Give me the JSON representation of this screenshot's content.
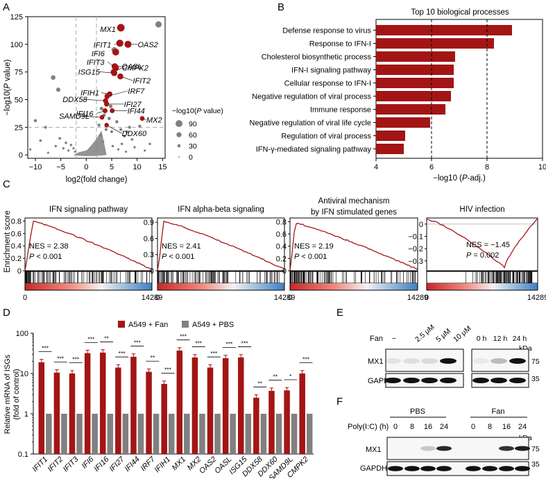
{
  "colors": {
    "red": "#a31515",
    "grey": "#808080",
    "darkred": "#8b0d0d",
    "lightgrey": "#bdbdbd"
  },
  "panel_labels": [
    "A",
    "B",
    "C",
    "D",
    "E",
    "F"
  ],
  "chart_data": [
    {
      "id": "volcano",
      "type": "scatter",
      "xlabel": "log2(fold change)",
      "ylabel_parts": [
        "−log10(",
        "P",
        " value)"
      ],
      "xticks": [
        -10,
        -5,
        0,
        5,
        10,
        15
      ],
      "yticks": [
        0,
        25,
        50,
        75,
        100,
        125
      ],
      "xlim": [
        -11.5,
        15.5
      ],
      "ylim": [
        -3,
        125
      ],
      "thresholds": {
        "x": [
          -2,
          2
        ],
        "y": 25
      },
      "legend": {
        "title_parts": [
          "−log10(",
          "P",
          " value)"
        ],
        "items": [
          "90",
          "60",
          "30",
          "0"
        ],
        "values": [
          90,
          60,
          30,
          0
        ]
      },
      "highlighted": [
        {
          "label": "MX1",
          "x": 6.8,
          "y": 115
        },
        {
          "label": "OAS2",
          "x": 8.2,
          "y": 100
        },
        {
          "label": "IFIT1",
          "x": 6.6,
          "y": 101
        },
        {
          "label": "IFI6",
          "x": 5.8,
          "y": 93
        },
        {
          "label": "OASL",
          "x": 5.6,
          "y": 80
        },
        {
          "label": "IFIT3",
          "x": 5.8,
          "y": 79
        },
        {
          "label": "CMPK2",
          "x": 5.4,
          "y": 75
        },
        {
          "label": "ISG15",
          "x": 5.5,
          "y": 74
        },
        {
          "label": "IFIT2",
          "x": 6.7,
          "y": 71
        },
        {
          "label": "IFIH1",
          "x": 4.6,
          "y": 55
        },
        {
          "label": "IRF7",
          "x": 4.1,
          "y": 53
        },
        {
          "label": "DDX58",
          "x": 3.8,
          "y": 49
        },
        {
          "label": "IFI27",
          "x": 4.0,
          "y": 46
        },
        {
          "label": "IFI16",
          "x": 3.7,
          "y": 40
        },
        {
          "label": "IFI44",
          "x": 5.1,
          "y": 40
        },
        {
          "label": "SAMD9L",
          "x": 3.1,
          "y": 34
        },
        {
          "label": "MX2",
          "x": 11.0,
          "y": 33
        },
        {
          "label": "DDX60",
          "x": 4.0,
          "y": 27
        }
      ],
      "background_points": [
        {
          "x": 14.2,
          "y": 118
        },
        {
          "x": -6.5,
          "y": 70
        },
        {
          "x": 5.5,
          "y": 95
        },
        {
          "x": -5.5,
          "y": 59
        },
        {
          "x": -10,
          "y": 31
        },
        {
          "x": -11,
          "y": 5
        },
        {
          "x": -9,
          "y": 13
        },
        {
          "x": -8,
          "y": 25
        },
        {
          "x": -7.5,
          "y": 2
        },
        {
          "x": -6,
          "y": 8
        },
        {
          "x": -5.2,
          "y": 15
        },
        {
          "x": -4.5,
          "y": 6
        },
        {
          "x": -4,
          "y": 11
        },
        {
          "x": -3.5,
          "y": 4
        },
        {
          "x": -3,
          "y": 9
        },
        {
          "x": -2.5,
          "y": 6
        },
        {
          "x": -2.2,
          "y": 3
        },
        {
          "x": 4.5,
          "y": 33
        },
        {
          "x": 5,
          "y": 21
        },
        {
          "x": 6,
          "y": 30
        },
        {
          "x": 6.8,
          "y": 23
        },
        {
          "x": 7.5,
          "y": 17
        },
        {
          "x": 8.5,
          "y": 25
        },
        {
          "x": 9,
          "y": 14
        },
        {
          "x": 10.5,
          "y": 26
        },
        {
          "x": 11.5,
          "y": 4
        },
        {
          "x": 9.5,
          "y": 7
        },
        {
          "x": 7,
          "y": 10
        },
        {
          "x": 2.8,
          "y": 18
        },
        {
          "x": 3.3,
          "y": 12
        },
        {
          "x": 2.5,
          "y": 27
        },
        {
          "x": 3.5,
          "y": 36
        },
        {
          "x": 3,
          "y": 42
        },
        {
          "x": 4.8,
          "y": 44
        },
        {
          "x": 7.8,
          "y": 3
        },
        {
          "x": 12.5,
          "y": 10
        },
        {
          "x": 5.2,
          "y": 8
        },
        {
          "x": 6.3,
          "y": 5
        },
        {
          "x": 3.9,
          "y": 23
        },
        {
          "x": 8,
          "y": 21
        }
      ]
    },
    {
      "id": "go-bars",
      "type": "bar",
      "orientation": "horizontal",
      "title": "Top 10 biological processes",
      "xlabel_parts": [
        "−log10 (",
        "P",
        "-adj.)"
      ],
      "xlim": [
        4,
        10
      ],
      "xticks": [
        4,
        6,
        8,
        10
      ],
      "reference_lines": [
        6,
        8
      ],
      "categories": [
        "Defense response to virus",
        "Response to IFN-I",
        "Cholesterol biosynthetic process",
        "IFN-I signaling pathway",
        "Cellular response to IFN-I",
        "Negative regulation of viral process",
        "Immune response",
        "Negative regulation of viral life cycle",
        "Regulation of viral process",
        "IFN-γ-mediated signaling pathway"
      ],
      "values": [
        8.9,
        8.25,
        6.85,
        6.8,
        6.8,
        6.7,
        6.5,
        5.95,
        5.05,
        5.0
      ]
    },
    {
      "id": "gsea",
      "type": "line",
      "ylabel": "Enrichment score",
      "panels": [
        {
          "title": "IFN signaling pathway",
          "nes": "NES = 2.38",
          "p": "P",
          "pval": " < 0.001",
          "x0": "0",
          "x1": "14289",
          "yticks": [
            "0.8",
            "0.6",
            "0.4",
            "0.2",
            "0"
          ],
          "ylim": [
            0,
            0.85
          ],
          "tickvals": [
            0.8,
            0.6,
            0.4,
            0.2,
            0
          ],
          "peak": 0.8,
          "peak_at": 0.06,
          "end": 0.02,
          "negative": false
        },
        {
          "title": "IFN alpha-beta signaling",
          "nes": "NES = 2.41",
          "p": "P",
          "pval": " < 0.001",
          "x0": "0",
          "x1": "14289",
          "yticks": [
            "0.9",
            "0.6",
            "0.3",
            "0"
          ],
          "ylim": [
            0,
            0.98
          ],
          "tickvals": [
            0.9,
            0.6,
            0.3,
            0
          ],
          "peak": 0.92,
          "peak_at": 0.05,
          "end": 0.03,
          "negative": false
        },
        {
          "title": "Antiviral mechanism by IFN stimulated genes",
          "nes": "NES = 2.19",
          "p": "P",
          "pval": " < 0.001",
          "x0": "0",
          "x1": "14289",
          "yticks": [
            "0.8",
            "0.6",
            "0.4",
            "0.2",
            "0"
          ],
          "ylim": [
            0,
            0.86
          ],
          "tickvals": [
            0.8,
            0.6,
            0.4,
            0.2,
            0
          ],
          "peak": 0.78,
          "peak_at": 0.04,
          "end": 0.02,
          "negative": false
        },
        {
          "title": "HIV infection",
          "nes": "NES = −1.45",
          "p": "P",
          "pval": " = 0.002",
          "x0": "0",
          "x1": "14289",
          "yticks": [
            "0",
            "−0.1",
            "−0.2",
            "−0.3"
          ],
          "ylim": [
            -0.38,
            0.05
          ],
          "tickvals": [
            0,
            -0.1,
            -0.2,
            -0.3
          ],
          "peak": -0.35,
          "peak_at": 0.7,
          "end": 0.0,
          "negative": true
        }
      ]
    },
    {
      "id": "qpcr",
      "type": "bar",
      "scale": "log",
      "ylabel": "Relative mRNA of ISGs",
      "ylabel2": "(fold of control)",
      "yticks": [
        "0.1",
        "1",
        "10",
        "100"
      ],
      "tickvals": [
        0.1,
        1,
        10,
        100
      ],
      "ylim": [
        0.1,
        100
      ],
      "series": [
        {
          "name": "A549 + Fan",
          "values": [
            19,
            10.5,
            10,
            32,
            33,
            14,
            26,
            11,
            5.5,
            37,
            25,
            14,
            24,
            25,
            2.5,
            3.7,
            3.8,
            10
          ]
        },
        {
          "name": "A549 + PBS",
          "values": [
            1,
            1,
            1,
            1,
            1,
            1,
            1,
            1,
            1,
            1,
            1,
            1,
            1,
            1,
            1,
            1,
            1,
            1
          ]
        }
      ],
      "categories": [
        "IFIT1",
        "IFIT2",
        "IFIT3",
        "IFI6",
        "IFI16",
        "IFI27",
        "IFI44",
        "IRF7",
        "IFIH1",
        "MX1",
        "MX2",
        "OAS2",
        "OASL",
        "ISG15",
        "DDX58",
        "DDX60",
        "SAMD9L",
        "CMPK2"
      ],
      "significance": [
        "***",
        "***",
        "***",
        "***",
        "**",
        "***",
        "***",
        "**",
        "***",
        "***",
        "***",
        "***",
        "***",
        "***",
        "**",
        "**",
        "*",
        "***"
      ]
    }
  ],
  "blot_e": {
    "left_labels": [
      "Fan",
      "MX1",
      "GAPDH"
    ],
    "lanes_dose": [
      "−",
      "2.5 μM",
      "5 μM",
      "10 μM"
    ],
    "lanes_time": [
      "0 h",
      "12 h",
      "24 h"
    ],
    "kda": "kDa",
    "marker75": "75",
    "marker35": "35"
  },
  "blot_f": {
    "groups": [
      "PBS",
      "Fan"
    ],
    "xlabel": "Poly(I:C) (h)",
    "lanes": [
      "0",
      "8",
      "16",
      "24",
      "0",
      "8",
      "16",
      "24"
    ],
    "left_labels": [
      "MX1",
      "GAPDH"
    ],
    "kda": "kDa",
    "marker75": "75",
    "marker35": "35"
  }
}
